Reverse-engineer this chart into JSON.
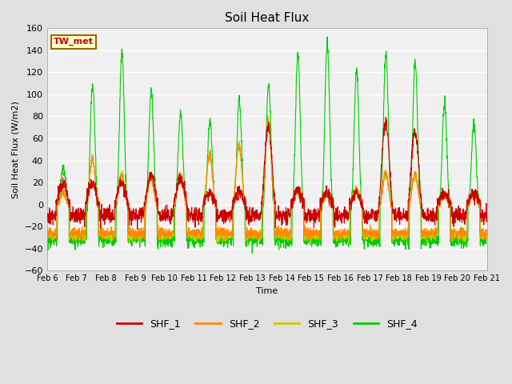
{
  "title": "Soil Heat Flux",
  "ylabel": "Soil Heat Flux (W/m2)",
  "xlabel": "Time",
  "annotation_text": "TW_met",
  "annotation_bg": "#FFFFCC",
  "annotation_border": "#996600",
  "annotation_text_color": "#CC0000",
  "ylim": [
    -60,
    160
  ],
  "yticks": [
    -60,
    -40,
    -20,
    0,
    20,
    40,
    60,
    80,
    100,
    120,
    140,
    160
  ],
  "colors": {
    "SHF_1": "#CC0000",
    "SHF_2": "#FF8800",
    "SHF_3": "#CCCC00",
    "SHF_4": "#00CC00"
  },
  "legend_labels": [
    "SHF_1",
    "SHF_2",
    "SHF_3",
    "SHF_4"
  ],
  "bg_color": "#E0E0E0",
  "plot_bg": "#F0F0F0",
  "n_days": 15,
  "points_per_day": 144,
  "x_tick_labels": [
    "Feb 6",
    "Feb 7",
    "Feb 8",
    "Feb 9",
    "Feb 10",
    "Feb 11",
    "Feb 12",
    "Feb 13",
    "Feb 14",
    "Feb 15",
    "Feb 16",
    "Feb 17",
    "Feb 18",
    "Feb 19",
    "Feb 20",
    "Feb 21"
  ],
  "linewidth": 0.8,
  "day_peak_4": [
    35,
    108,
    138,
    104,
    84,
    75,
    95,
    108,
    137,
    146,
    121,
    139,
    130,
    90,
    74
  ],
  "day_peak_1": [
    20,
    20,
    20,
    25,
    25,
    10,
    10,
    70,
    13,
    10,
    10,
    75,
    65,
    10,
    10
  ],
  "day_peak_2": [
    10,
    40,
    26,
    25,
    26,
    44,
    53,
    77,
    13,
    10,
    13,
    28,
    28,
    10,
    10
  ],
  "day_peak_3": [
    10,
    42,
    28,
    26,
    28,
    46,
    55,
    78,
    13,
    10,
    13,
    28,
    26,
    10,
    10
  ],
  "night_base_4": -32,
  "night_base_1": -10,
  "night_base_2": -26,
  "night_base_3": -28,
  "grid_color": "#FFFFFF",
  "grid_linewidth": 1.0
}
